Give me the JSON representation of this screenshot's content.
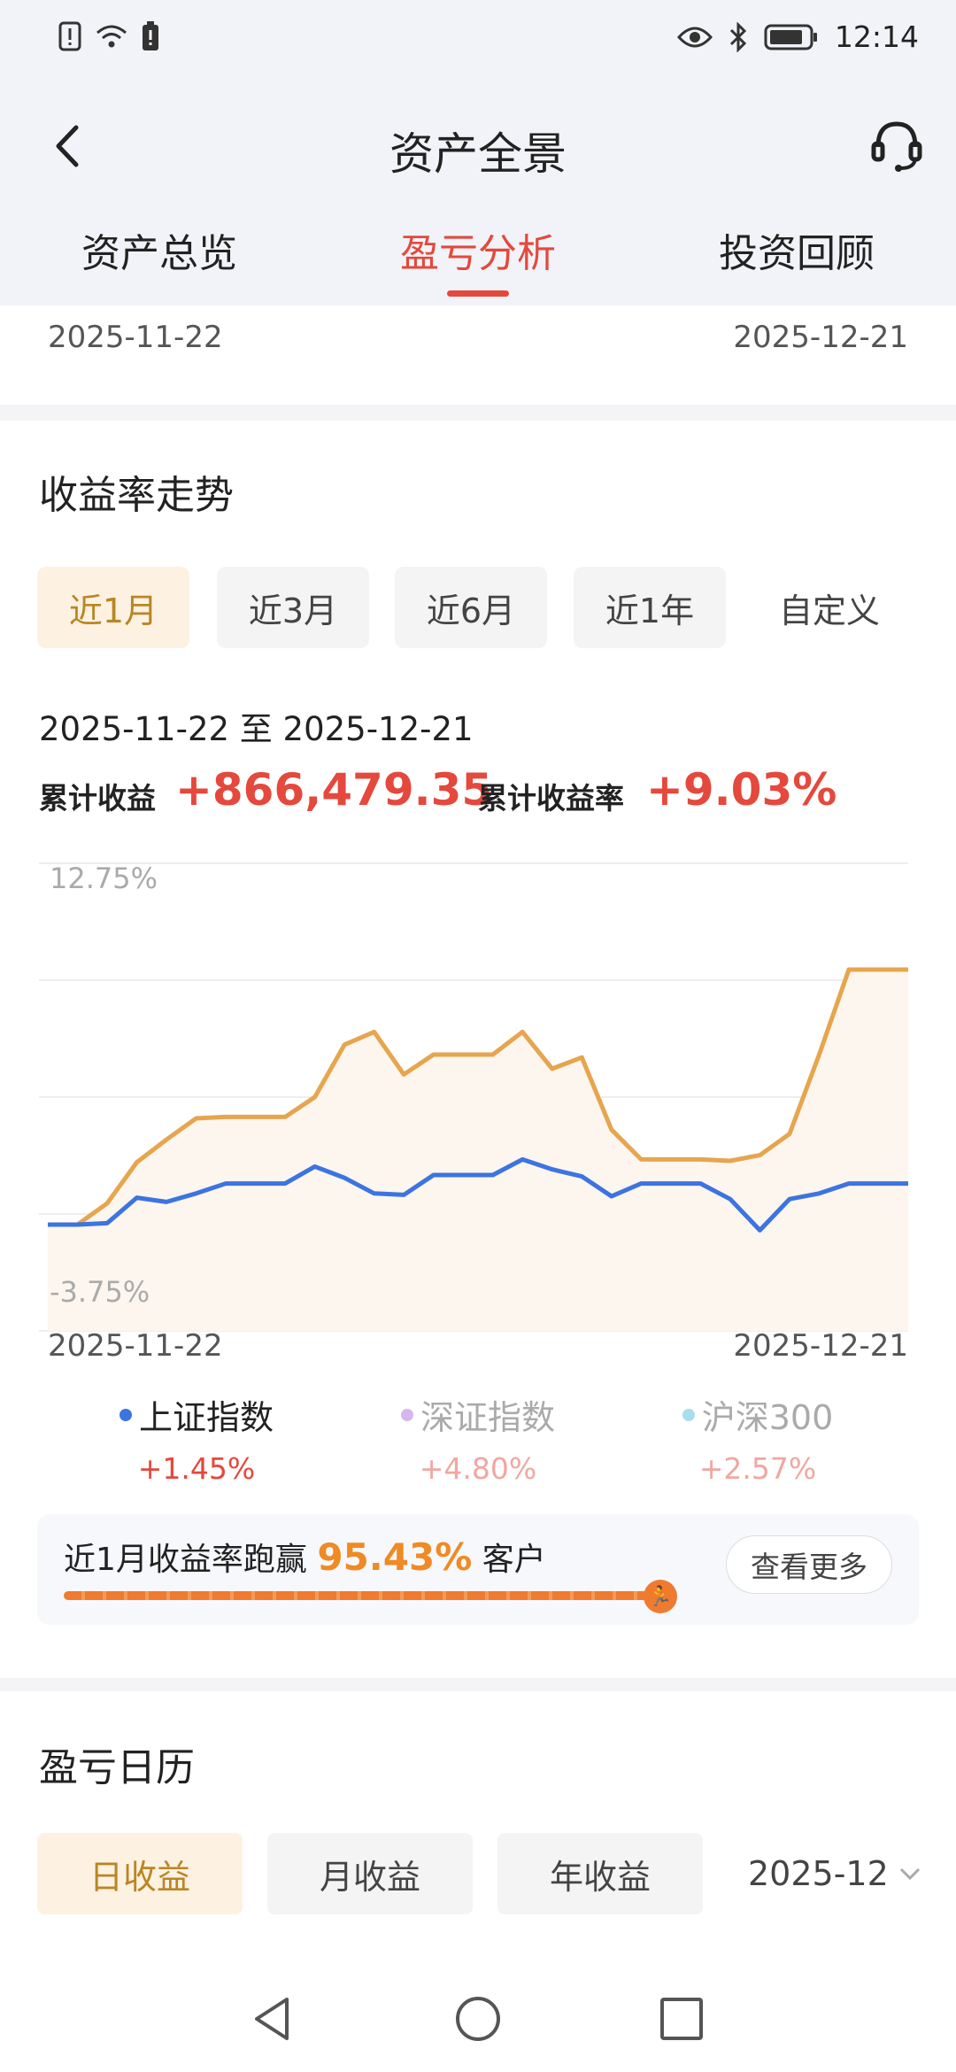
{
  "status_bar": {
    "time": "12:14",
    "icons": [
      "alert-icon",
      "wifi-icon",
      "battery-saver-icon",
      "eye-icon",
      "bluetooth-icon",
      "battery-icon"
    ]
  },
  "header": {
    "title": "资产全景",
    "tabs": [
      {
        "label": "资产总览",
        "active": false
      },
      {
        "label": "盈亏分析",
        "active": true
      },
      {
        "label": "投资回顾",
        "active": false
      }
    ]
  },
  "top_card": {
    "start_date": "2025-11-22",
    "end_date": "2025-12-21"
  },
  "trend": {
    "title": "收益率走势",
    "ranges": [
      {
        "label": "近1月",
        "active": true
      },
      {
        "label": "近3月",
        "active": false
      },
      {
        "label": "近6月",
        "active": false
      },
      {
        "label": "近1年",
        "active": false
      }
    ],
    "custom_label": "自定义",
    "range_text": "2025-11-22 至 2025-12-21",
    "cum_profit_label": "累计收益",
    "cum_profit_value": "+866,479.35",
    "cum_rate_label": "累计收益率",
    "cum_rate_value": "+9.03%",
    "legend": [
      {
        "name": "上证指数",
        "pct": "+1.45%",
        "color": "#3c74e0",
        "pct_color": "#e5483c",
        "dim": false
      },
      {
        "name": "深证指数",
        "pct": "+4.80%",
        "color": "#d7b6ee",
        "pct_color": "#f0a7a0",
        "dim": true
      },
      {
        "name": "沪深300",
        "pct": "+2.57%",
        "color": "#a8dcf1",
        "pct_color": "#f0a7a0",
        "dim": true
      }
    ],
    "beat": {
      "prefix": "近1月收益率跑赢",
      "pct": "95.43%",
      "suffix": "客户",
      "more": "查看更多",
      "progress": 0.9543
    }
  },
  "chart_data": {
    "type": "line",
    "title": "",
    "xlabel": "",
    "ylabel": "",
    "ylim": [
      -3.75,
      12.75
    ],
    "y_tick_labels": [
      "12.75%",
      "-3.75%"
    ],
    "x_tick_labels": [
      "2025-11-22",
      "2025-12-21"
    ],
    "series": [
      {
        "name": "",
        "color": "#e6a54e",
        "values": [
          0.0,
          0.0,
          0.75,
          2.2,
          3.0,
          3.75,
          3.8,
          3.8,
          3.8,
          4.5,
          6.35,
          6.8,
          5.3,
          6.0,
          6.0,
          6.0,
          6.8,
          5.5,
          5.9,
          3.35,
          2.3,
          2.3,
          2.3,
          2.25,
          2.45,
          3.2,
          6.0,
          9.0,
          9.0,
          9.0
        ]
      },
      {
        "name": "上证指数",
        "color": "#3c74e0",
        "values": [
          0.0,
          0.0,
          0.05,
          0.95,
          0.8,
          1.1,
          1.45,
          1.45,
          1.45,
          2.05,
          1.65,
          1.1,
          1.05,
          1.75,
          1.75,
          1.75,
          2.3,
          1.95,
          1.7,
          1.0,
          1.45,
          1.45,
          1.45,
          0.9,
          -0.2,
          0.9,
          1.1,
          1.45,
          1.45,
          1.45
        ]
      }
    ]
  },
  "calendar": {
    "title": "盈亏日历",
    "tabs": [
      {
        "label": "日收益",
        "active": true
      },
      {
        "label": "月收益",
        "active": false
      },
      {
        "label": "年收益",
        "active": false
      }
    ],
    "month": "2025-12"
  },
  "nav_bar": {
    "icons": [
      "back-triangle-icon",
      "home-circle-icon",
      "recents-square-icon"
    ]
  }
}
